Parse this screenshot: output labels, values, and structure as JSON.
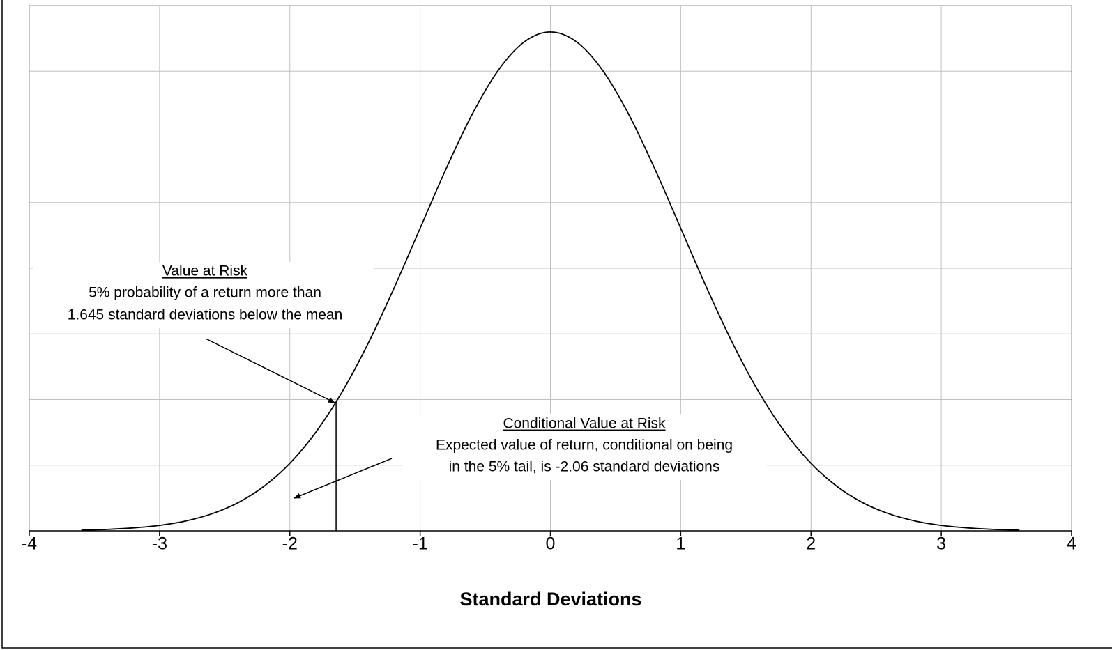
{
  "chart_data": {
    "type": "line",
    "x_label": "Standard Deviations",
    "x": [
      -3.6,
      -3.4,
      -3.2,
      -3.0,
      -2.8,
      -2.6,
      -2.4,
      -2.2,
      -2.0,
      -1.8,
      -1.6,
      -1.4,
      -1.2,
      -1.0,
      -0.8,
      -0.6,
      -0.4,
      -0.2,
      0,
      0.2,
      0.4,
      0.6,
      0.8,
      1.0,
      1.2,
      1.4,
      1.6,
      1.8,
      2.0,
      2.2,
      2.4,
      2.6,
      2.8,
      3.0,
      3.2,
      3.4,
      3.6
    ],
    "series": [
      {
        "color": "#000000",
        "values": [
          0.0006,
          0.0012,
          0.0024,
          0.0044,
          0.0079,
          0.0136,
          0.0224,
          0.0355,
          0.054,
          0.079,
          0.1109,
          0.1497,
          0.1942,
          0.242,
          0.2897,
          0.3332,
          0.3683,
          0.391,
          0.3989,
          0.391,
          0.3683,
          0.3332,
          0.2897,
          0.242,
          0.1942,
          0.1497,
          0.1109,
          0.079,
          0.054,
          0.0355,
          0.0224,
          0.0136,
          0.0079,
          0.0044,
          0.0024,
          0.0012,
          0.0006
        ]
      }
    ],
    "var_line": {
      "x": -1.645,
      "y": 0.1031
    },
    "xlim": [
      -4,
      4
    ],
    "xticks": [
      -4,
      -3,
      -2,
      -1,
      0,
      1,
      2,
      3,
      4
    ],
    "ylim": [
      0,
      0.42
    ],
    "yticks": [
      0,
      0.0525,
      0.105,
      0.1575,
      0.21,
      0.2625,
      0.315,
      0.3675,
      0.42
    ],
    "grid": true,
    "annotations": [
      {
        "title": "Value at Risk",
        "lines": [
          "5% probability of a return more than",
          "1.645 standard deviations below the mean"
        ]
      },
      {
        "title": "Conditional Value at Risk",
        "lines": [
          "Expected value of return, conditional on being",
          "in the 5% tail, is -2.06 standard deviations"
        ]
      }
    ]
  }
}
